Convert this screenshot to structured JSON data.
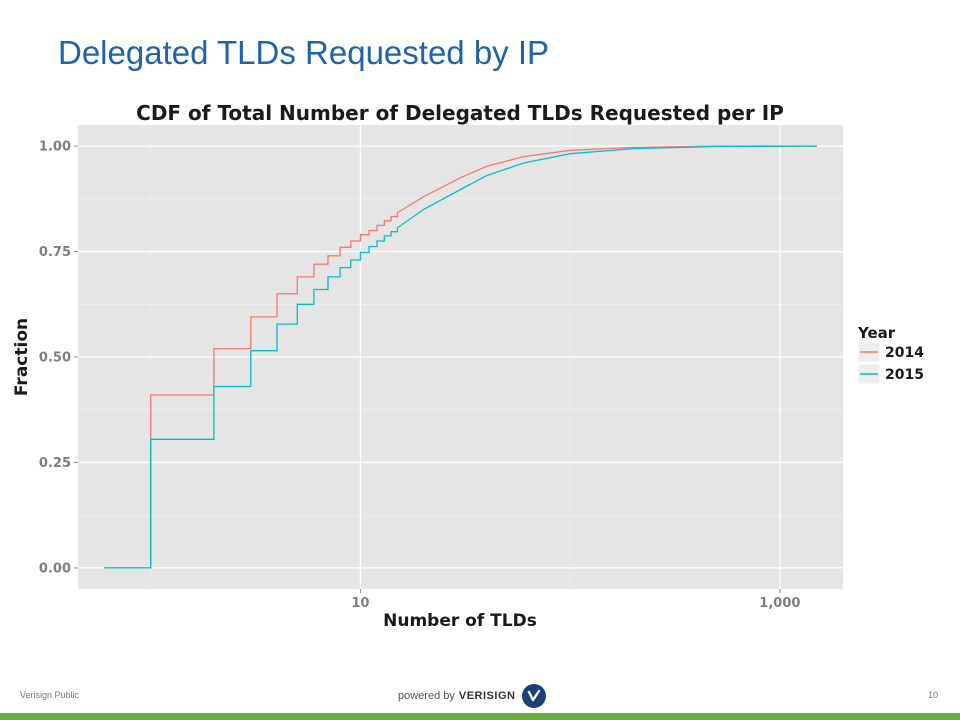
{
  "slide": {
    "title": "Delegated TLDs Requested by IP",
    "footer_left": "Verisign Public",
    "page_number": "10",
    "brand_prefix": "powered by",
    "brand_name": "VERISIGN"
  },
  "chart_data": {
    "type": "line",
    "step": true,
    "title": "CDF of Total Number of Delegated TLDs Requested per IP",
    "xlabel": "Number of TLDs",
    "ylabel": "Fraction",
    "x_scale": "log10",
    "xlim": [
      0.45,
      2000
    ],
    "ylim": [
      -0.05,
      1.05
    ],
    "x_ticks": [
      10,
      1000
    ],
    "x_tick_labels": [
      "10",
      "1,000"
    ],
    "y_ticks": [
      0,
      0.25,
      0.5,
      0.75,
      1.0
    ],
    "y_tick_labels": [
      "0.00",
      "0.25",
      "0.50",
      "0.75",
      "1.00"
    ],
    "grid": true,
    "legend": {
      "title": "Year",
      "placement": "right"
    },
    "series": [
      {
        "name": "2014",
        "color": "#f8766d",
        "x": [
          0.6,
          1,
          1,
          2,
          2,
          3,
          3,
          4,
          4,
          5,
          5,
          6,
          6,
          7,
          7,
          8,
          8,
          9,
          9,
          10,
          10,
          11,
          11,
          12,
          12,
          13,
          13,
          14,
          14,
          15,
          15,
          20,
          30,
          40,
          60,
          100,
          200,
          500,
          1500
        ],
        "y": [
          0,
          0,
          0.41,
          0.41,
          0.52,
          0.52,
          0.595,
          0.595,
          0.65,
          0.65,
          0.69,
          0.69,
          0.72,
          0.72,
          0.74,
          0.74,
          0.76,
          0.76,
          0.775,
          0.775,
          0.79,
          0.79,
          0.8,
          0.8,
          0.812,
          0.812,
          0.823,
          0.823,
          0.833,
          0.833,
          0.842,
          0.88,
          0.925,
          0.952,
          0.975,
          0.99,
          0.997,
          1.0,
          1.0
        ]
      },
      {
        "name": "2015",
        "color": "#00bfc4",
        "x": [
          0.6,
          1,
          1,
          2,
          2,
          3,
          3,
          4,
          4,
          5,
          5,
          6,
          6,
          7,
          7,
          8,
          8,
          9,
          9,
          10,
          10,
          11,
          11,
          12,
          12,
          13,
          13,
          14,
          14,
          15,
          15,
          20,
          30,
          40,
          60,
          100,
          200,
          500,
          1500
        ],
        "y": [
          0,
          0,
          0.305,
          0.305,
          0.43,
          0.43,
          0.515,
          0.515,
          0.578,
          0.578,
          0.625,
          0.625,
          0.66,
          0.66,
          0.69,
          0.69,
          0.712,
          0.712,
          0.73,
          0.73,
          0.748,
          0.748,
          0.762,
          0.762,
          0.775,
          0.775,
          0.787,
          0.787,
          0.797,
          0.797,
          0.806,
          0.85,
          0.897,
          0.93,
          0.96,
          0.982,
          0.994,
          0.999,
          1.0
        ]
      }
    ]
  }
}
